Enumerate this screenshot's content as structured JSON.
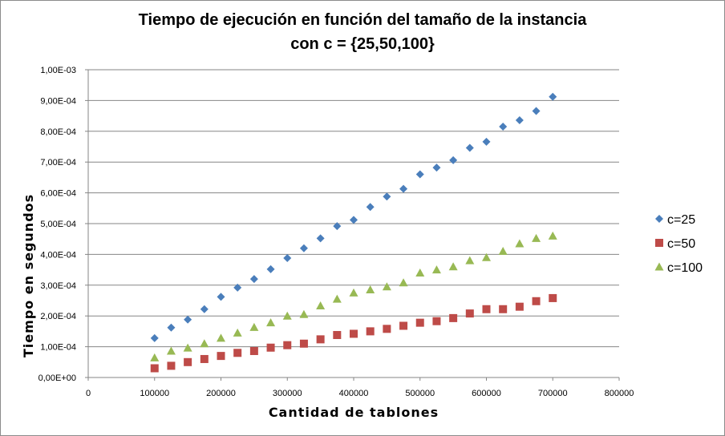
{
  "chart_data": {
    "type": "scatter",
    "title": "Tiempo de ejecución en función del tamaño de la instancia",
    "subtitle": "con c = {25,50,100}",
    "xlabel": "Cantidad de tablones",
    "ylabel": "Tiempo en segundos",
    "xlim": [
      0,
      800000
    ],
    "ylim": [
      0,
      0.001
    ],
    "x_ticks": [
      "0",
      "100000",
      "200000",
      "300000",
      "400000",
      "500000",
      "600000",
      "700000",
      "800000"
    ],
    "y_ticks": [
      "0,00E+00",
      "1,00E-04",
      "2,00E-04",
      "3,00E-04",
      "4,00E-04",
      "5,00E-04",
      "6,00E-04",
      "7,00E-04",
      "8,00E-04",
      "9,00E-04",
      "1,00E-03"
    ],
    "grid": "horizontal",
    "legend_position": "right",
    "x": [
      100000,
      125000,
      150000,
      175000,
      200000,
      225000,
      250000,
      275000,
      300000,
      325000,
      350000,
      375000,
      400000,
      425000,
      450000,
      475000,
      500000,
      525000,
      550000,
      575000,
      600000,
      625000,
      650000,
      675000,
      700000
    ],
    "series": [
      {
        "name": "c=25",
        "marker": "diamond",
        "color": "#4a7ebb",
        "values": [
          0.000128,
          0.000162,
          0.000188,
          0.000222,
          0.000262,
          0.000292,
          0.00032,
          0.000352,
          0.000388,
          0.00042,
          0.000452,
          0.000492,
          0.000512,
          0.000554,
          0.000588,
          0.000613,
          0.00066,
          0.000682,
          0.000706,
          0.000746,
          0.000766,
          0.000815,
          0.000836,
          0.000866,
          0.000912
        ]
      },
      {
        "name": "c=50",
        "marker": "square",
        "color": "#be4b48",
        "values": [
          3e-05,
          3.8e-05,
          5e-05,
          6e-05,
          7e-05,
          8e-05,
          8.6e-05,
          9.7e-05,
          0.000105,
          0.00011,
          0.000124,
          0.000138,
          0.000142,
          0.00015,
          0.000158,
          0.000168,
          0.000178,
          0.000183,
          0.000193,
          0.000208,
          0.000222,
          0.000222,
          0.00023,
          0.000248,
          0.000258
        ]
      },
      {
        "name": "c=100",
        "marker": "triangle",
        "color": "#98b954",
        "values": [
          6.4e-05,
          8.6e-05,
          9.6e-05,
          0.00011,
          0.000128,
          0.000145,
          0.000163,
          0.000178,
          0.0002,
          0.000205,
          0.000233,
          0.000255,
          0.000275,
          0.000285,
          0.000295,
          0.000308,
          0.00034,
          0.00035,
          0.00036,
          0.00038,
          0.00039,
          0.00041,
          0.000435,
          0.000452,
          0.00046
        ]
      }
    ]
  }
}
